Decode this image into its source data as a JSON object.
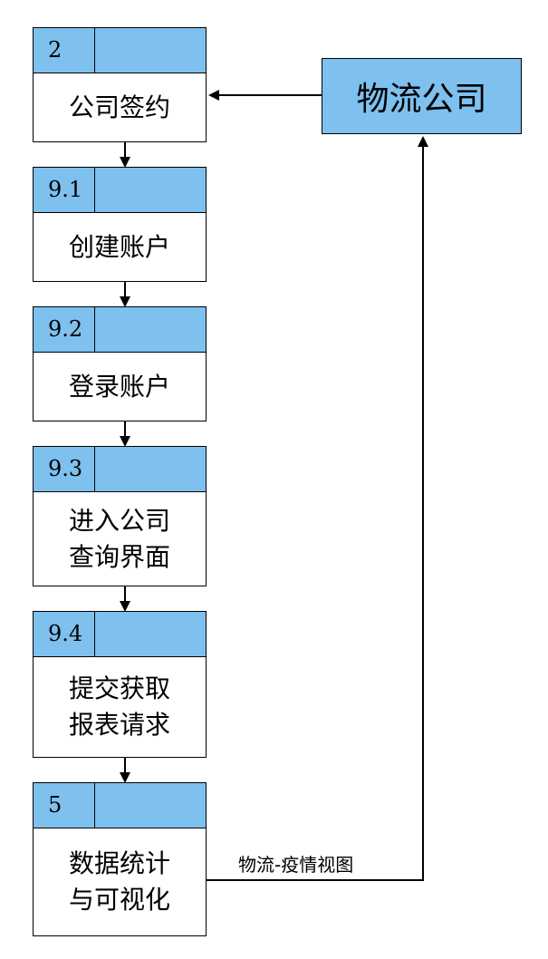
{
  "steps": [
    {
      "id": "2",
      "label": "公司签约"
    },
    {
      "id": "9.1",
      "label": "创建账户"
    },
    {
      "id": "9.2",
      "label": "登录账户"
    },
    {
      "id": "9.3",
      "label": "进入公司\n查询界面"
    },
    {
      "id": "9.4",
      "label": "提交获取\n报表请求"
    },
    {
      "id": "5",
      "label": "数据统计\n与可视化"
    }
  ],
  "external_entity": {
    "label": "物流公司"
  },
  "edge_label": "物流-疫情视图",
  "colors": {
    "header_fill": "#7ec0ee",
    "box_border": "#000000"
  }
}
